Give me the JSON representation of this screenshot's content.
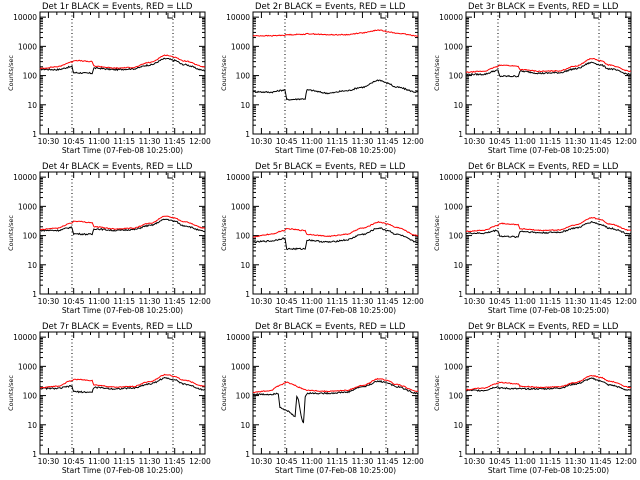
{
  "colors": {
    "events": "#000000",
    "lld": "#ff0000"
  },
  "chart_data": [
    {
      "type": "line",
      "title": "Det 1r BLACK = Events, RED = LLD",
      "xlabel": "Start Time (07-Feb-08 10:25:00)",
      "ylabel": "Counts/sec",
      "x_ticks": [
        "10:30",
        "10:45",
        "11:00",
        "11:15",
        "11:30",
        "11:45",
        "12:00"
      ],
      "y_ticks": [
        "1",
        "10",
        "100",
        "1000",
        "10000"
      ],
      "y_scale": "log",
      "ylim": [
        1,
        15000
      ],
      "x": [
        "10:25",
        "10:35",
        "10:44",
        "10:45",
        "10:56",
        "10:57",
        "11:10",
        "11:20",
        "11:30",
        "11:40",
        "11:45",
        "11:50",
        "12:03"
      ],
      "series": [
        {
          "name": "BLACK = Events",
          "values": [
            165,
            160,
            200,
            125,
            120,
            180,
            160,
            170,
            230,
            380,
            330,
            240,
            150
          ]
        },
        {
          "name": "RED = LLD",
          "values": [
            175,
            200,
            290,
            330,
            300,
            210,
            180,
            190,
            280,
            500,
            430,
            320,
            200
          ]
        }
      ],
      "vlines": [
        "10:44",
        "11:44"
      ]
    },
    {
      "type": "line",
      "title": "Det 2r BLACK = Events, RED = LLD",
      "xlabel": "Start Time (07-Feb-08 10:25:00)",
      "ylabel": "Counts/sec",
      "x_ticks": [
        "10:30",
        "10:45",
        "11:00",
        "11:15",
        "11:30",
        "11:45",
        "12:00"
      ],
      "y_ticks": [
        "1",
        "10",
        "100",
        "1000",
        "10000"
      ],
      "y_scale": "log",
      "ylim": [
        1,
        15000
      ],
      "x": [
        "10:25",
        "10:35",
        "10:44",
        "10:45",
        "10:56",
        "10:57",
        "11:10",
        "11:20",
        "11:30",
        "11:40",
        "11:45",
        "11:50",
        "12:03"
      ],
      "series": [
        {
          "name": "BLACK = Events",
          "values": [
            28,
            27,
            32,
            15,
            16,
            32,
            25,
            30,
            40,
            70,
            55,
            40,
            27
          ]
        },
        {
          "name": "RED = LLD",
          "values": [
            2300,
            2300,
            2400,
            2500,
            2600,
            2700,
            2500,
            2500,
            2900,
            3600,
            3200,
            2800,
            2300
          ]
        }
      ],
      "vlines": [
        "10:44",
        "11:44"
      ]
    },
    {
      "type": "line",
      "title": "Det 3r BLACK = Events, RED = LLD",
      "xlabel": "Start Time (07-Feb-08 10:25:00)",
      "ylabel": "Counts/sec",
      "x_ticks": [
        "10:30",
        "10:45",
        "11:00",
        "11:15",
        "11:30",
        "11:45",
        "12:00"
      ],
      "y_ticks": [
        "1",
        "10",
        "100",
        "1000",
        "10000"
      ],
      "y_scale": "log",
      "ylim": [
        1,
        15000
      ],
      "x": [
        "10:25",
        "10:35",
        "10:44",
        "10:45",
        "10:56",
        "10:57",
        "11:10",
        "11:20",
        "11:30",
        "11:40",
        "11:45",
        "11:50",
        "12:03"
      ],
      "series": [
        {
          "name": "BLACK = Events",
          "values": [
            110,
            110,
            150,
            95,
            95,
            140,
            120,
            125,
            170,
            280,
            230,
            170,
            110
          ]
        },
        {
          "name": "RED = LLD",
          "values": [
            130,
            140,
            200,
            230,
            210,
            160,
            140,
            145,
            210,
            380,
            320,
            230,
            140
          ]
        }
      ],
      "vlines": [
        "10:44",
        "11:44"
      ]
    },
    {
      "type": "line",
      "title": "Det 4r BLACK = Events, RED = LLD",
      "xlabel": "Start Time (07-Feb-08 10:25:00)",
      "ylabel": "Counts/sec",
      "x_ticks": [
        "10:30",
        "10:45",
        "11:00",
        "11:15",
        "11:30",
        "11:45",
        "12:00"
      ],
      "y_ticks": [
        "1",
        "10",
        "100",
        "1000",
        "10000"
      ],
      "y_scale": "log",
      "ylim": [
        1,
        15000
      ],
      "x": [
        "10:25",
        "10:35",
        "10:44",
        "10:45",
        "10:56",
        "10:57",
        "11:10",
        "11:20",
        "11:30",
        "11:40",
        "11:45",
        "11:50",
        "12:03"
      ],
      "series": [
        {
          "name": "BLACK = Events",
          "values": [
            150,
            150,
            190,
            115,
            110,
            170,
            150,
            160,
            220,
            360,
            310,
            220,
            140
          ]
        },
        {
          "name": "RED = LLD",
          "values": [
            160,
            180,
            270,
            310,
            280,
            200,
            170,
            180,
            260,
            470,
            400,
            300,
            180
          ]
        }
      ],
      "vlines": [
        "10:44",
        "11:44"
      ]
    },
    {
      "type": "line",
      "title": "Det 5r BLACK = Events, RED = LLD",
      "xlabel": "Start Time (07-Feb-08 10:25:00)",
      "ylabel": "Counts/sec",
      "x_ticks": [
        "10:30",
        "10:45",
        "11:00",
        "11:15",
        "11:30",
        "11:45",
        "12:00"
      ],
      "y_ticks": [
        "1",
        "10",
        "100",
        "1000",
        "10000"
      ],
      "y_scale": "log",
      "ylim": [
        1,
        15000
      ],
      "x": [
        "10:25",
        "10:35",
        "10:44",
        "10:45",
        "10:56",
        "10:57",
        "11:10",
        "11:20",
        "11:30",
        "11:40",
        "11:45",
        "11:50",
        "12:03"
      ],
      "series": [
        {
          "name": "BLACK = Events",
          "values": [
            60,
            65,
            80,
            35,
            35,
            70,
            60,
            70,
            110,
            180,
            150,
            110,
            60
          ]
        },
        {
          "name": "RED = LLD",
          "values": [
            90,
            110,
            150,
            170,
            150,
            110,
            95,
            110,
            180,
            290,
            250,
            190,
            100
          ]
        }
      ],
      "vlines": [
        "10:44",
        "11:44"
      ]
    },
    {
      "type": "line",
      "title": "Det 6r BLACK = Events, RED = LLD",
      "xlabel": "Start Time (07-Feb-08 10:25:00)",
      "ylabel": "Counts/sec",
      "x_ticks": [
        "10:30",
        "10:45",
        "11:00",
        "11:15",
        "11:30",
        "11:45",
        "12:00"
      ],
      "y_ticks": [
        "1",
        "10",
        "100",
        "1000",
        "10000"
      ],
      "y_scale": "log",
      "ylim": [
        1,
        15000
      ],
      "x": [
        "10:25",
        "10:35",
        "10:44",
        "10:45",
        "10:56",
        "10:57",
        "11:10",
        "11:20",
        "11:30",
        "11:40",
        "11:45",
        "11:50",
        "12:03"
      ],
      "series": [
        {
          "name": "BLACK = Events",
          "values": [
            120,
            120,
            150,
            95,
            90,
            140,
            125,
            130,
            180,
            290,
            240,
            180,
            115
          ]
        },
        {
          "name": "RED = LLD",
          "values": [
            140,
            150,
            220,
            260,
            240,
            170,
            150,
            155,
            230,
            410,
            350,
            250,
            150
          ]
        }
      ],
      "vlines": [
        "10:44",
        "11:44"
      ]
    },
    {
      "type": "line",
      "title": "Det 7r BLACK = Events, RED = LLD",
      "xlabel": "Start Time (07-Feb-08 10:25:00)",
      "ylabel": "Counts/sec",
      "x_ticks": [
        "10:30",
        "10:45",
        "11:00",
        "11:15",
        "11:30",
        "11:45",
        "12:00"
      ],
      "y_ticks": [
        "1",
        "10",
        "100",
        "1000",
        "10000"
      ],
      "y_scale": "log",
      "ylim": [
        1,
        15000
      ],
      "x": [
        "10:25",
        "10:35",
        "10:44",
        "10:45",
        "10:56",
        "10:57",
        "11:10",
        "11:20",
        "11:30",
        "11:40",
        "11:45",
        "11:50",
        "12:03"
      ],
      "series": [
        {
          "name": "BLACK = Events",
          "values": [
            175,
            175,
            210,
            135,
            130,
            190,
            170,
            180,
            250,
            400,
            350,
            250,
            160
          ]
        },
        {
          "name": "RED = LLD",
          "values": [
            185,
            210,
            320,
            360,
            330,
            230,
            195,
            205,
            300,
            520,
            450,
            340,
            210
          ]
        }
      ],
      "vlines": [
        "10:44",
        "11:44"
      ]
    },
    {
      "type": "line",
      "title": "Det 8r BLACK = Events, RED = LLD",
      "xlabel": "Start Time (07-Feb-08 10:25:00)",
      "ylabel": "Counts/sec",
      "x_ticks": [
        "10:30",
        "10:45",
        "11:00",
        "11:15",
        "11:30",
        "11:45",
        "12:00"
      ],
      "y_ticks": [
        "1",
        "10",
        "100",
        "1000",
        "10000"
      ],
      "y_scale": "log",
      "ylim": [
        1,
        15000
      ],
      "x": [
        "10:25",
        "10:35",
        "10:40",
        "10:41",
        "10:45",
        "10:50",
        "10:51",
        "10:55",
        "10:56",
        "10:57",
        "11:10",
        "11:20",
        "11:30",
        "11:40",
        "11:45",
        "11:50",
        "12:03"
      ],
      "series": [
        {
          "name": "BLACK = Events",
          "values": [
            110,
            110,
            120,
            40,
            30,
            20,
            90,
            12,
            90,
            120,
            120,
            130,
            200,
            310,
            270,
            200,
            120
          ]
        },
        {
          "name": "RED = LLD",
          "values": [
            130,
            145,
            210,
            230,
            280,
            230,
            200,
            170,
            160,
            150,
            140,
            150,
            220,
            380,
            330,
            240,
            140
          ]
        }
      ],
      "vlines": [
        "10:44",
        "11:44"
      ]
    },
    {
      "type": "line",
      "title": "Det 9r BLACK = Events, RED = LLD",
      "xlabel": "Start Time (07-Feb-08 10:25:00)",
      "ylabel": "Counts/sec",
      "x_ticks": [
        "10:30",
        "10:45",
        "11:00",
        "11:15",
        "11:30",
        "11:45",
        "12:00"
      ],
      "y_ticks": [
        "1",
        "10",
        "100",
        "1000",
        "10000"
      ],
      "y_scale": "log",
      "ylim": [
        1,
        15000
      ],
      "x": [
        "10:25",
        "10:35",
        "10:44",
        "10:45",
        "10:56",
        "10:57",
        "11:10",
        "11:20",
        "11:30",
        "11:40",
        "11:45",
        "11:50",
        "12:03"
      ],
      "series": [
        {
          "name": "BLACK = Events",
          "values": [
            150,
            150,
            200,
            180,
            170,
            170,
            170,
            180,
            250,
            380,
            320,
            230,
            150
          ]
        },
        {
          "name": "RED = LLD",
          "values": [
            160,
            180,
            260,
            280,
            250,
            210,
            190,
            200,
            280,
            480,
            420,
            310,
            190
          ]
        }
      ],
      "vlines": [
        "10:44",
        "11:44"
      ]
    }
  ]
}
